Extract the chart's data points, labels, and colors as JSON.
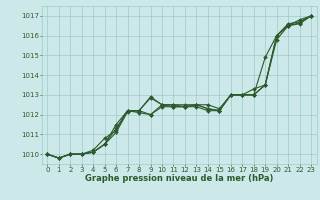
{
  "xlabel": "Graphe pression niveau de la mer (hPa)",
  "xlim": [
    -0.5,
    23.5
  ],
  "ylim": [
    1009.5,
    1017.5
  ],
  "yticks": [
    1010,
    1011,
    1012,
    1013,
    1014,
    1015,
    1016,
    1017
  ],
  "xticks": [
    0,
    1,
    2,
    3,
    4,
    5,
    6,
    7,
    8,
    9,
    10,
    11,
    12,
    13,
    14,
    15,
    16,
    17,
    18,
    19,
    20,
    21,
    22,
    23
  ],
  "background_color": "#cce8e8",
  "grid_color": "#99cccc",
  "line_color": "#2d5a2d",
  "series": [
    [
      1010.0,
      1009.8,
      1010.0,
      1010.0,
      1010.1,
      1010.5,
      1011.5,
      1012.2,
      1012.2,
      1012.9,
      1012.5,
      1012.5,
      1012.5,
      1012.5,
      1012.5,
      1012.3,
      1013.0,
      1013.0,
      1013.0,
      1013.5,
      1016.0,
      1016.5,
      1016.8,
      1017.0
    ],
    [
      1010.0,
      1009.8,
      1010.0,
      1010.0,
      1010.2,
      1010.8,
      1011.2,
      1012.2,
      1012.1,
      1012.0,
      1012.5,
      1012.4,
      1012.4,
      1012.5,
      1012.3,
      1012.2,
      1013.0,
      1013.0,
      1013.0,
      1014.9,
      1016.0,
      1016.6,
      1016.7,
      1017.0
    ],
    [
      1010.0,
      1009.8,
      1010.0,
      1010.0,
      1010.1,
      1010.5,
      1011.3,
      1012.2,
      1012.2,
      1012.85,
      1012.5,
      1012.5,
      1012.4,
      1012.5,
      1012.3,
      1012.2,
      1013.0,
      1013.0,
      1013.0,
      1013.5,
      1016.0,
      1016.5,
      1016.65,
      1017.0
    ],
    [
      1010.0,
      1009.8,
      1010.0,
      1010.0,
      1010.1,
      1010.5,
      1011.1,
      1012.15,
      1012.2,
      1012.0,
      1012.4,
      1012.4,
      1012.4,
      1012.4,
      1012.2,
      1012.2,
      1013.0,
      1013.0,
      1013.3,
      1013.5,
      1015.8,
      1016.5,
      1016.6,
      1017.0
    ]
  ],
  "tick_fontsize": 5.0,
  "xlabel_fontsize": 6.0,
  "linewidth": 0.8,
  "markersize": 2.0
}
